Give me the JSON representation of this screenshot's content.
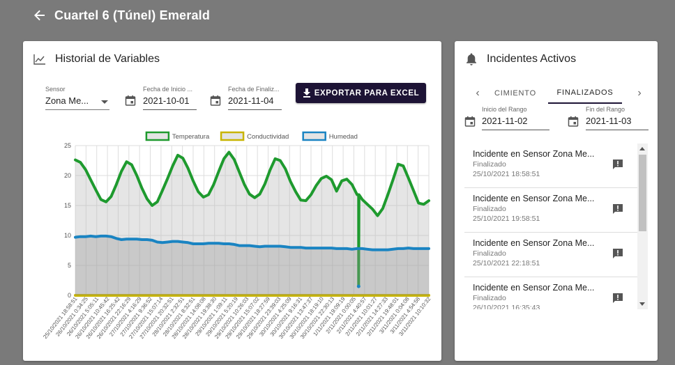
{
  "header": {
    "title": "Cuartel 6 (Túnel) Emerald"
  },
  "history": {
    "title": "Historial de Variables",
    "sensor": {
      "label": "Sensor",
      "value": "Zona Me..."
    },
    "start": {
      "label": "Fecha de Inicio ...",
      "value": "2021-10-01"
    },
    "end": {
      "label": "Fecha de Finaliz...",
      "value": "2021-11-04"
    },
    "export_label": "EXPORTAR PARA EXCEL"
  },
  "incidents": {
    "title": "Incidentes Activos",
    "tabs": [
      "CIMIENTO",
      "FINALIZADOS"
    ],
    "active_tab": "FINALIZADOS",
    "range_start": {
      "label": "Inicio del Rango",
      "value": "2021-11-02"
    },
    "range_end": {
      "label": "Fin del Rango",
      "value": "2021-11-03"
    },
    "items": [
      {
        "title": "Incidente en Sensor Zona Me...",
        "status": "Finalizado",
        "date": "25/10/2021 18:58:51"
      },
      {
        "title": "Incidente en Sensor Zona Me...",
        "status": "Finalizado",
        "date": "25/10/2021 19:58:51"
      },
      {
        "title": "Incidente en Sensor Zona Me...",
        "status": "Finalizado",
        "date": "25/10/2021 22:18:51"
      },
      {
        "title": "Incidente en Sensor Zona Me...",
        "status": "Finalizado",
        "date": "26/10/2021 16:35:43"
      }
    ]
  },
  "chart_data": {
    "type": "line",
    "legend_position": "top",
    "grid": true,
    "ylim": [
      0,
      25
    ],
    "yticks": [
      0,
      5,
      10,
      15,
      20,
      25
    ],
    "x_labels": [
      "25/10/2021 18:58:51",
      "26/10/2021 0:34:25",
      "26/10/2021 5:05:11",
      "26/10/2021 10:45:42",
      "26/10/2021 16:25:42",
      "26/10/2021 22:16:29",
      "27/10/2021 4:16:29",
      "27/10/2021 9:36:52",
      "27/10/2021 15:07:14",
      "27/10/2021 20:32:51",
      "28/10/2021 2:32:51",
      "28/10/2021 8:32:51",
      "28/10/2021 14:08:08",
      "28/10/2021 19:38:30",
      "29/10/2021 1:09:11",
      "29/10/2021 5:20:19",
      "29/10/2021 10:26:03",
      "29/10/2021 15:07:02",
      "29/10/2021 18:27:59",
      "29/10/2021 23:39:03",
      "30/10/2021 4:25:09",
      "30/10/2021 9:16:31",
      "30/10/2021 13:47:37",
      "30/10/2021 18:19:10",
      "30/10/2021 22:30:13",
      "1/11/2021 19:09:19",
      "2/11/2021 0:00:05",
      "2/11/2021 4:40:57",
      "2/11/2021 10:01:27",
      "2/11/2021 14:27:33",
      "2/11/2021 19:48:01",
      "3/11/2021 0:04:08",
      "3/11/2021 4:54:58",
      "3/11/2021 10:10:32"
    ],
    "series": [
      {
        "name": "Temperatura",
        "color": "#1e9a2e",
        "fill": "rgba(180,180,180,0.35)",
        "values": [
          22.6,
          22.2,
          21,
          19.3,
          17.6,
          16,
          15.6,
          16.5,
          18.5,
          20.7,
          22.3,
          21.8,
          20,
          17.9,
          16.1,
          15,
          15.6,
          17.5,
          19.5,
          21.6,
          23.4,
          22.9,
          21.2,
          19.1,
          17.3,
          16.4,
          16.8,
          18.5,
          20.7,
          22.8,
          23.9,
          22.7,
          20.6,
          18.5,
          16.9,
          16.3,
          16.9,
          18.6,
          20.9,
          22.8,
          22.5,
          21.1,
          19,
          17.3,
          15.9,
          15.8,
          16.8,
          18.3,
          19.5,
          19.9,
          19.3,
          17.4,
          19.1,
          19.4,
          18.5,
          16.8,
          16,
          15.2,
          14.4,
          13.3,
          14.5,
          16.8,
          19.3,
          21.9,
          21.6,
          19.6,
          17.5,
          15.4,
          15.2,
          15.8
        ]
      },
      {
        "name": "Conductividad",
        "color": "#c8b400",
        "fill": "rgba(220,220,200,0.5)",
        "values": [
          0,
          0,
          0,
          0,
          0,
          0,
          0,
          0,
          0,
          0,
          0,
          0,
          0,
          0,
          0,
          0,
          0,
          0,
          0,
          0,
          0,
          0,
          0,
          0,
          0,
          0,
          0,
          0,
          0,
          0,
          0,
          0,
          0,
          0,
          0,
          0,
          0,
          0,
          0,
          0,
          0,
          0,
          0,
          0,
          0,
          0,
          0,
          0,
          0,
          0,
          0,
          0,
          0,
          0,
          0,
          0,
          0,
          0,
          0,
          0,
          0,
          0,
          0,
          0,
          0,
          0,
          0,
          0,
          0,
          0
        ]
      },
      {
        "name": "Humedad",
        "color": "#1a84c2",
        "fill": "rgba(150,150,150,0.35)",
        "values": [
          9.7,
          9.8,
          9.8,
          9.9,
          9.8,
          9.9,
          9.9,
          9.8,
          9.5,
          9.3,
          9.4,
          9.4,
          9.4,
          9.3,
          9.3,
          9.2,
          8.9,
          8.8,
          8.9,
          9,
          9,
          8.9,
          8.8,
          8.6,
          8.6,
          8.6,
          8.7,
          8.7,
          8.7,
          8.6,
          8.6,
          8.5,
          8.3,
          8.3,
          8.3,
          8.2,
          8.1,
          8.2,
          8.2,
          8.2,
          8.2,
          8.1,
          8.0,
          8.0,
          8.0,
          7.9,
          7.9,
          7.9,
          7.9,
          7.9,
          7.9,
          7.8,
          7.8,
          7.8,
          7.7,
          7.8,
          7.8,
          7.7,
          7.6,
          7.6,
          7.6,
          7.6,
          7.7,
          7.8,
          7.8,
          7.9,
          7.8,
          7.8,
          7.8,
          7.8
        ]
      }
    ],
    "anomaly": {
      "series": "Temperatura",
      "index": 55,
      "value": 1.5
    }
  }
}
